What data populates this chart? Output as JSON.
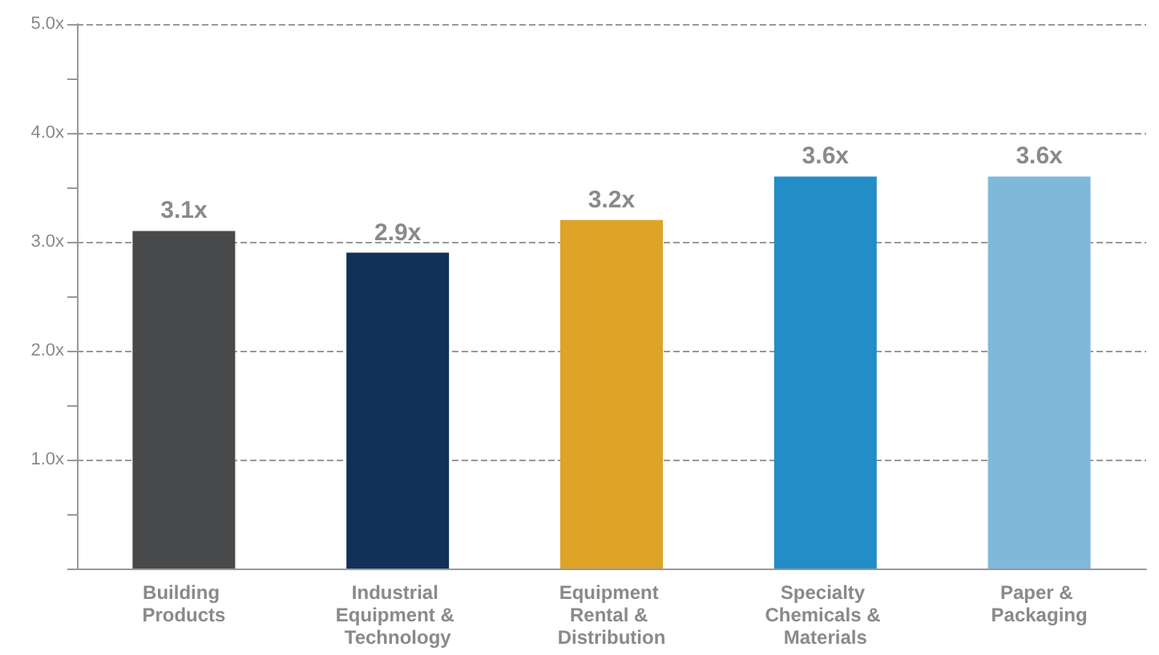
{
  "chart_data": {
    "type": "bar",
    "categories": [
      "Building Products",
      "Industrial Equipment & Technology",
      "Equipment Rental & Distribution",
      "Specialty Chemicals & Materials",
      "Paper & Packaging"
    ],
    "values": [
      3.1,
      2.9,
      3.2,
      3.6,
      3.6
    ],
    "colors": [
      "#48494b",
      "#123156",
      "#dea327",
      "#238dc7",
      "#80b8da"
    ],
    "value_labels": [
      "3.1x",
      "2.9x",
      "3.2x",
      "3.6x",
      "3.6x"
    ],
    "ylim": [
      0,
      5
    ],
    "yticks": [
      {
        "value": 0,
        "label": null
      },
      {
        "value": 1,
        "label": "1.0x"
      },
      {
        "value": 2,
        "label": "2.0x"
      },
      {
        "value": 3,
        "label": "3.0x"
      },
      {
        "value": 4,
        "label": "4.0x"
      },
      {
        "value": 5,
        "label": "5.0x"
      }
    ],
    "grid": "y"
  }
}
